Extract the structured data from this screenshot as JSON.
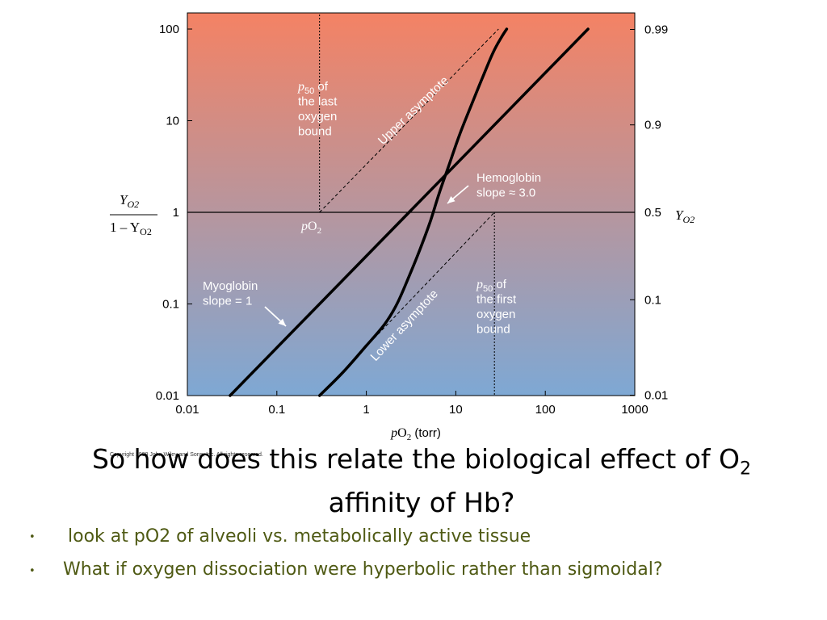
{
  "chart_data": {
    "type": "line",
    "x_scale": "log",
    "y_scale": "log",
    "xlim": [
      0.01,
      1000
    ],
    "ylim": [
      0.01,
      100
    ],
    "x_ticks": [
      "0.01",
      "0.1",
      "1",
      "10",
      "100",
      "1000"
    ],
    "y_ticks_left": [
      "0.01",
      "0.1",
      "1",
      "10",
      "100"
    ],
    "y_ticks_right": [
      "0.01",
      "0.1",
      "0.5",
      "0.9",
      "0.99"
    ],
    "xlabel": "pO2 (torr)",
    "ylabel_left_num": "YO2",
    "ylabel_left_den": "1 – YO2",
    "ylabel_right": "YO2",
    "series": [
      {
        "name": "Myoglobin",
        "x": [
          0.03,
          300
        ],
        "y": [
          0.01,
          100
        ]
      },
      {
        "name": "Hemoglobin",
        "x": [
          0.3,
          0.55,
          1.0,
          1.6,
          2.2,
          3.0,
          4.0,
          5.2,
          6.5,
          8.5,
          11,
          15,
          20,
          26,
          32,
          37
        ],
        "y": [
          0.01,
          0.018,
          0.035,
          0.06,
          0.1,
          0.2,
          0.4,
          0.8,
          1.6,
          3.4,
          7.0,
          15,
          30,
          55,
          80,
          100
        ]
      }
    ],
    "asymptotes": [
      {
        "name": "Upper asymptote",
        "x": [
          0.3,
          30
        ],
        "y": [
          1,
          100
        ]
      },
      {
        "name": "Lower asymptote",
        "x": [
          0.3,
          27
        ],
        "y": [
          0.01,
          1
        ]
      }
    ],
    "reference_lines": {
      "horizontal_y": 1,
      "vertical_left_x": 0.3,
      "vertical_right_x": 27
    },
    "annotations": {
      "p50_last": [
        "p50 of",
        "the last",
        "oxygen",
        "bound"
      ],
      "p50_first": [
        "p50 of",
        "the first",
        "oxygen",
        "bound"
      ],
      "upper_asymptote": "Upper asymptote",
      "lower_asymptote": "Lower asymptote",
      "hemoglobin": [
        "Hemoglobin",
        "slope ≈ 3.0"
      ],
      "myoglobin": [
        "Myoglobin",
        "slope = 1"
      ],
      "po2_marker": "pO2",
      "copyright": "Copyright 1999 John Wiley and Sons, Inc. All rights reserved."
    },
    "colors": {
      "top": "#f48264",
      "bottom": "#7ea8d4",
      "line": "#000000",
      "label": "#ffffff"
    }
  },
  "slide": {
    "title_line1": "So how does this relate the biological effect of O",
    "title_subscript": "2",
    "title_line2": "affinity of Hb?",
    "bullets": [
      "look at pO2 of alveoli vs. metabolically active tissue",
      "What if oxygen dissociation were hyperbolic rather than sigmoidal?"
    ],
    "bullet_glyph": "•"
  }
}
